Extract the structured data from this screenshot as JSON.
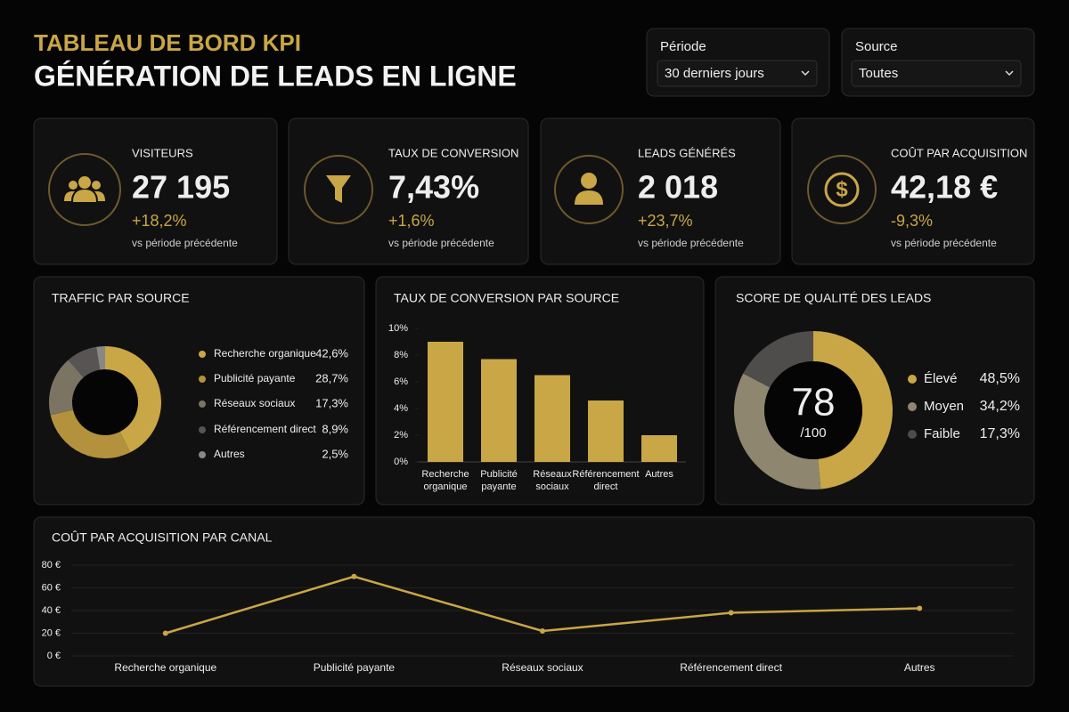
{
  "header": {
    "title": "TABLEAU DE BORD KPI",
    "subtitle": "GÉNÉRATION DE LEADS EN LIGNE"
  },
  "filters": [
    {
      "label": "Période",
      "value": "30 derniers jours"
    },
    {
      "label": "Source",
      "value": "Toutes"
    }
  ],
  "kpis": [
    {
      "label": "VISITEURS",
      "value": "27 195",
      "delta": "+18,2%",
      "note": "vs période précédente"
    },
    {
      "label": "TAUX DE CONVERSION",
      "value": "7,43%",
      "delta": "+1,6%",
      "note": "vs période précédente"
    },
    {
      "label": "LEADS GÉNÉRÉS",
      "value": "2 018",
      "delta": "+23,7%",
      "note": "vs période précédente"
    },
    {
      "label": "COÛT PAR ACQUISITION",
      "value": "42,18 €",
      "delta": "-9,3%",
      "note": "vs période précédente"
    }
  ],
  "chart_data": [
    {
      "type": "donut",
      "title": "TRAFFIC PAR SOURCE",
      "categories": [
        "Recherche organique",
        "Publicité payante",
        "Réseaux sociaux",
        "Référencement direct",
        "Autres"
      ],
      "values": [
        42.6,
        28.7,
        17.3,
        8.9,
        2.5
      ],
      "value_labels": [
        "42,6%",
        "28,7%",
        "17,3%",
        "8,9%",
        "2,5%"
      ],
      "colors": [
        "#c9a646",
        "#b3913d",
        "#7c7463",
        "#575553",
        "#8a8885"
      ]
    },
    {
      "type": "bar",
      "title": "TAUX DE CONVERSION PAR SOURCE",
      "categories": [
        "Recherche organique",
        "Publicité payante",
        "Réseaux sociaux",
        "Référencement direct",
        "Autres"
      ],
      "values": [
        9.0,
        7.7,
        6.5,
        4.6,
        2.0
      ],
      "color": "#c9a646",
      "ylim": [
        0,
        10
      ],
      "yticks": [
        {
          "value": 0,
          "label": "0%"
        },
        {
          "value": 2,
          "label": "2%"
        },
        {
          "value": 4,
          "label": "4%"
        },
        {
          "value": 6,
          "label": "6%"
        },
        {
          "value": 8,
          "label": "8%"
        },
        {
          "value": 10,
          "label": "10%"
        }
      ]
    },
    {
      "type": "donut",
      "title": "SCORE DE QUALITÉ DES LEADS",
      "score": 78,
      "score_max": "/100",
      "categories": [
        "Élevé",
        "Moyen",
        "Faible"
      ],
      "values": [
        48.5,
        34.2,
        17.3
      ],
      "value_labels": [
        "48,5%",
        "34,2%",
        "17,3%"
      ],
      "colors": [
        "#c9a646",
        "#8f8670",
        "#4f4d4b"
      ]
    },
    {
      "type": "line",
      "title": "COÛT PAR ACQUISITION PAR CANAL",
      "categories": [
        "Recherche organique",
        "Publicité payante",
        "Réseaux sociaux",
        "Référencement direct",
        "Autres"
      ],
      "values": [
        20,
        70,
        22,
        38,
        42
      ],
      "color": "#c9a646",
      "ylim": [
        0,
        80
      ],
      "grid": true,
      "yticks": [
        {
          "value": 0,
          "label": "0 €"
        },
        {
          "value": 20,
          "label": "20 €"
        },
        {
          "value": 40,
          "label": "40 €"
        },
        {
          "value": 60,
          "label": "60 €"
        },
        {
          "value": 80,
          "label": "80 €"
        }
      ]
    }
  ]
}
